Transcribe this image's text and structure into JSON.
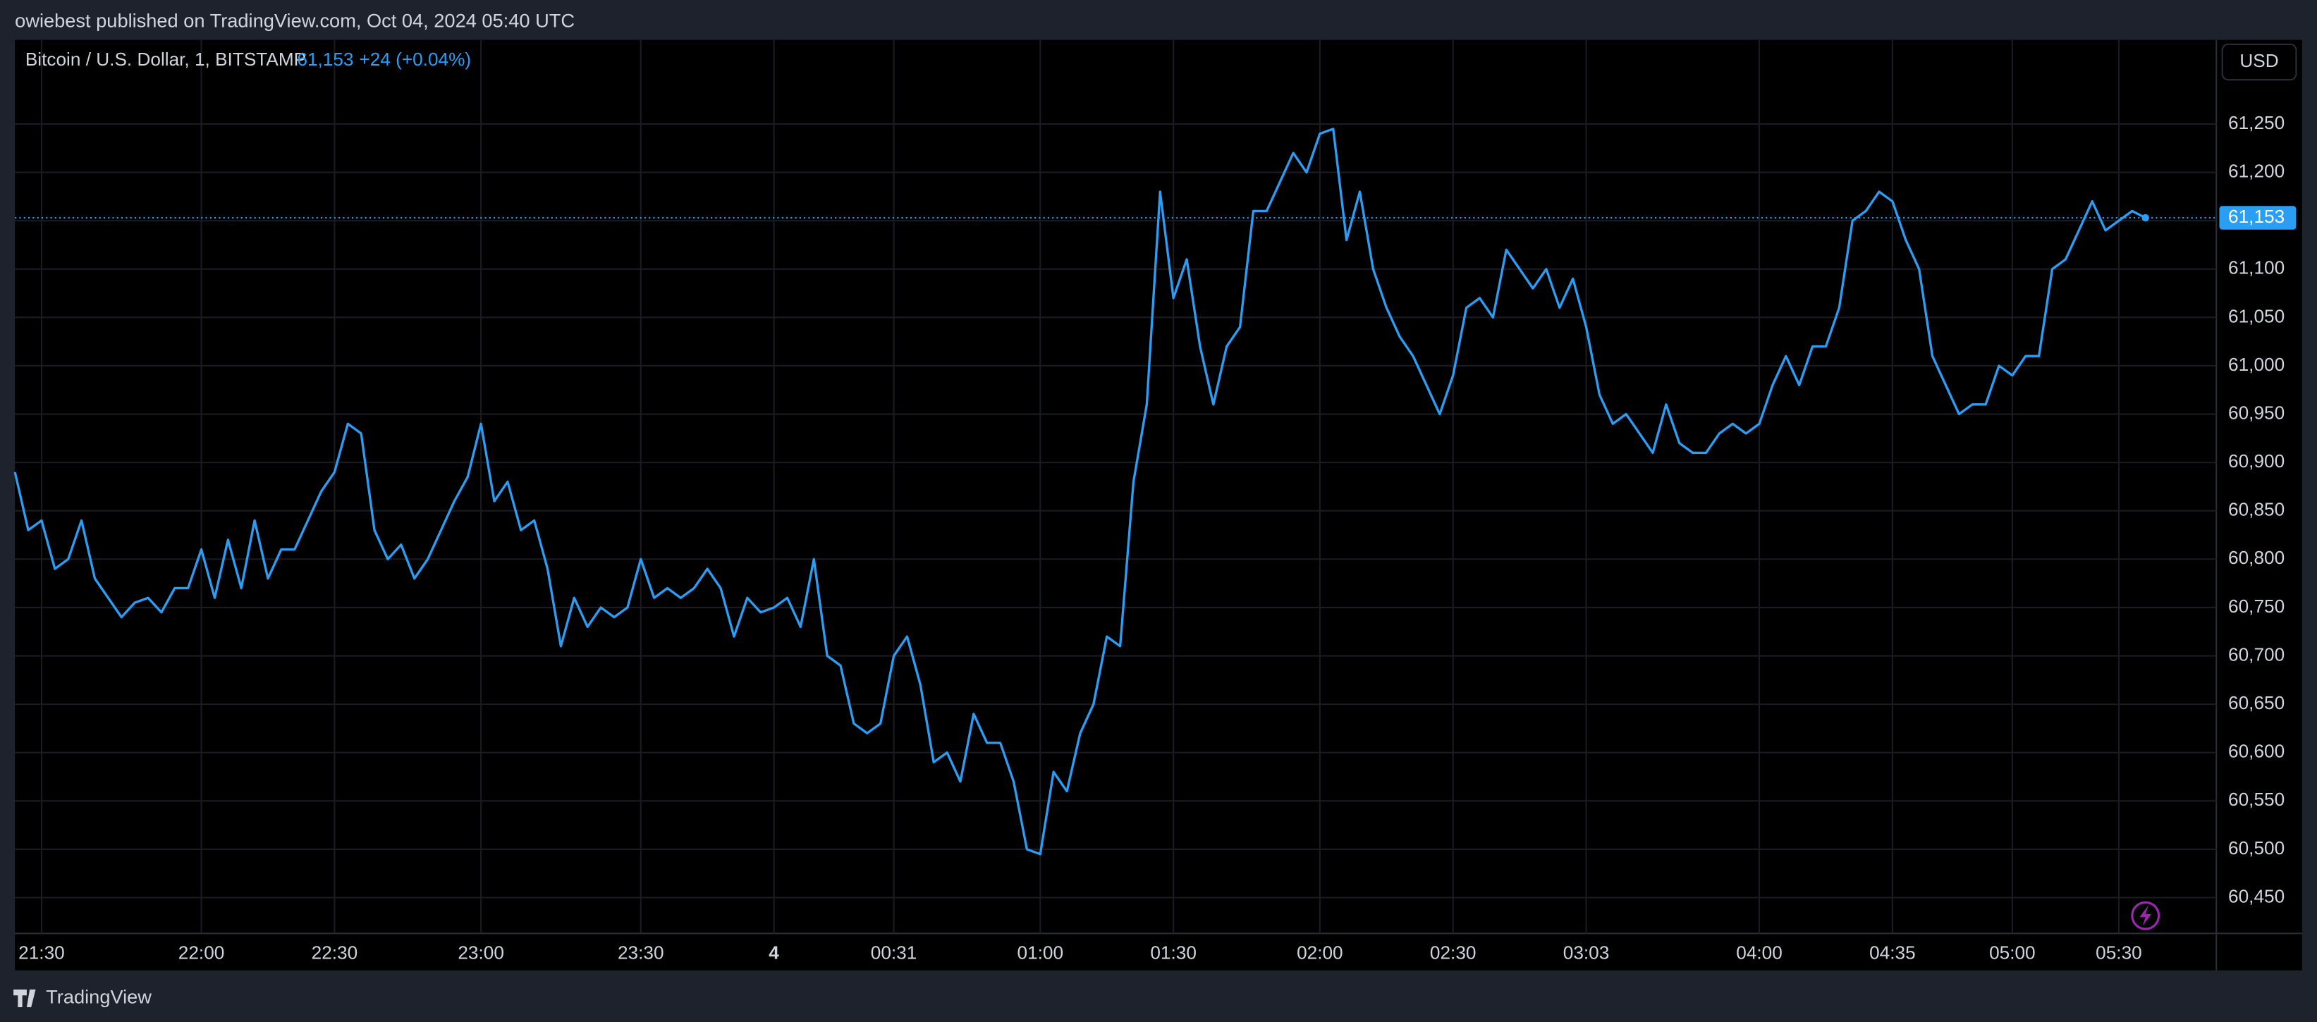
{
  "header": {
    "published": "owiebest published on TradingView.com, Oct 04, 2024 05:40 UTC"
  },
  "footer": {
    "brand": "TradingView"
  },
  "chart_data": {
    "type": "line",
    "title": "Bitcoin / U.S. Dollar, 1, BITSTAMP",
    "last_price": "61,153",
    "change": "+24 (+0.04%)",
    "currency": "USD",
    "categories": [
      null,
      null,
      "21:30",
      null,
      null,
      null,
      null,
      null,
      null,
      null,
      null,
      null,
      null,
      null,
      "22:00",
      null,
      null,
      null,
      null,
      null,
      null,
      null,
      null,
      null,
      "22:30",
      null,
      null,
      null,
      null,
      null,
      null,
      null,
      null,
      null,
      null,
      "23:00",
      null,
      null,
      null,
      null,
      null,
      null,
      null,
      null,
      null,
      null,
      null,
      "23:30",
      null,
      null,
      null,
      null,
      null,
      null,
      null,
      null,
      null,
      "4",
      null,
      null,
      null,
      null,
      null,
      null,
      null,
      null,
      "00:31",
      null,
      null,
      null,
      null,
      null,
      null,
      null,
      null,
      null,
      null,
      "01:00",
      null,
      null,
      null,
      null,
      null,
      null,
      null,
      null,
      null,
      "01:30",
      null,
      null,
      null,
      null,
      null,
      null,
      null,
      null,
      null,
      null,
      "02:00",
      null,
      null,
      null,
      null,
      null,
      null,
      null,
      null,
      null,
      "02:30",
      null,
      null,
      null,
      null,
      null,
      null,
      null,
      null,
      null,
      "03:03",
      null,
      null,
      null,
      null,
      null,
      null,
      null,
      null,
      null,
      null,
      null,
      null,
      "04:00",
      null,
      null,
      null,
      null,
      null,
      null,
      null,
      null,
      null,
      "04:35",
      null,
      null,
      null,
      null,
      null,
      null,
      null,
      null,
      "05:00",
      null,
      null,
      null,
      null,
      null,
      null,
      null,
      "05:30",
      null,
      null
    ],
    "series": [
      {
        "name": "BTCUSD",
        "color": "#2a9df4",
        "values": [
          60890,
          60830,
          60840,
          60790,
          60800,
          60840,
          60780,
          60760,
          60740,
          60755,
          60760,
          60745,
          60770,
          60770,
          60810,
          60760,
          60820,
          60770,
          60840,
          60780,
          60810,
          60810,
          60840,
          60870,
          60890,
          60940,
          60930,
          60830,
          60800,
          60815,
          60780,
          60800,
          60830,
          60860,
          60885,
          60940,
          60860,
          60880,
          60830,
          60840,
          60790,
          60710,
          60760,
          60730,
          60750,
          60740,
          60750,
          60800,
          60760,
          60770,
          60760,
          60770,
          60790,
          60770,
          60720,
          60760,
          60745,
          60750,
          60760,
          60730,
          60800,
          60700,
          60690,
          60630,
          60620,
          60630,
          60700,
          60720,
          60670,
          60590,
          60600,
          60570,
          60640,
          60610,
          60610,
          60570,
          60500,
          60495,
          60580,
          60560,
          60620,
          60650,
          60720,
          60710,
          60880,
          60960,
          61180,
          61070,
          61110,
          61020,
          60960,
          61020,
          61040,
          61160,
          61160,
          61190,
          61220,
          61200,
          61240,
          61245,
          61130,
          61180,
          61100,
          61060,
          61030,
          61010,
          60980,
          60950,
          60990,
          61060,
          61070,
          61050,
          61120,
          61100,
          61080,
          61100,
          61060,
          61090,
          61040,
          60970,
          60940,
          60950,
          60930,
          60910,
          60960,
          60920,
          60910,
          60910,
          60930,
          60940,
          60930,
          60940,
          60980,
          61010,
          60980,
          61020,
          61020,
          61060,
          61150,
          61160,
          61180,
          61170,
          61130,
          61100,
          61010,
          60980,
          60950,
          60960,
          60960,
          61000,
          60990,
          61010,
          61010,
          61100,
          61110,
          61140,
          61170,
          61140,
          61150,
          61160,
          61153
        ]
      }
    ],
    "ylim": [
      60413,
      61337
    ],
    "yticks": [
      {
        "value": 60450,
        "label": "60,450"
      },
      {
        "value": 60500,
        "label": "60,500"
      },
      {
        "value": 60550,
        "label": "60,550"
      },
      {
        "value": 60600,
        "label": "60,600"
      },
      {
        "value": 60650,
        "label": "60,650"
      },
      {
        "value": 60700,
        "label": "60,700"
      },
      {
        "value": 60750,
        "label": "60,750"
      },
      {
        "value": 60800,
        "label": "60,800"
      },
      {
        "value": 60850,
        "label": "60,850"
      },
      {
        "value": 60900,
        "label": "60,900"
      },
      {
        "value": 60950,
        "label": "60,950"
      },
      {
        "value": 61000,
        "label": "61,000"
      },
      {
        "value": 61050,
        "label": "61,050"
      },
      {
        "value": 61100,
        "label": "61,100"
      },
      {
        "value": 61150,
        "label": "61,150"
      },
      {
        "value": 61200,
        "label": "61,200"
      },
      {
        "value": 61250,
        "label": "61,250"
      }
    ],
    "grid": true
  }
}
